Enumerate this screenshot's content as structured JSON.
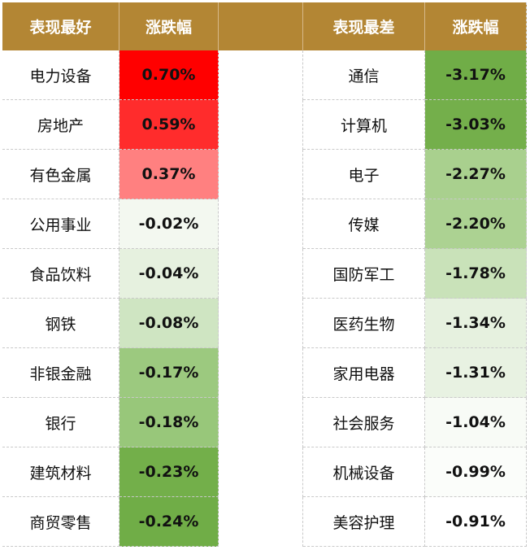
{
  "headers": {
    "best_name": "表现最好",
    "best_change": "涨跌幅",
    "worst_name": "表现最差",
    "worst_change": "涨跌幅"
  },
  "colors": {
    "header_bg": "#b38634",
    "red_strong": "#ff0000",
    "red_medium": "#ff2c2c",
    "red_light": "#ff8080",
    "green_strong": "#70ad47",
    "green_medium": "#a9d08e",
    "green_light": "#c6e0b4",
    "green_pale": "#e2efda",
    "green_faint": "#f3f8f0"
  },
  "rows": [
    {
      "best": "电力设备",
      "best_pct": "0.70%",
      "best_color": "#ff0000",
      "worst": "通信",
      "worst_pct": "-3.17%",
      "worst_color": "#70ad47"
    },
    {
      "best": "房地产",
      "best_pct": "0.59%",
      "best_color": "#ff2c2c",
      "worst": "计算机",
      "worst_pct": "-3.03%",
      "worst_color": "#74af4b"
    },
    {
      "best": "有色金属",
      "best_pct": "0.37%",
      "best_color": "#ff8080",
      "worst": "电子",
      "worst_pct": "-2.27%",
      "worst_color": "#a9d08e"
    },
    {
      "best": "公用事业",
      "best_pct": "-0.02%",
      "best_color": "#f3f8f0",
      "worst": "传媒",
      "worst_pct": "-2.20%",
      "worst_color": "#acd292"
    },
    {
      "best": "食品饮料",
      "best_pct": "-0.04%",
      "best_color": "#e6f1df",
      "worst": "国防军工",
      "worst_pct": "-1.78%",
      "worst_color": "#c9e2b9"
    },
    {
      "best": "钢铁",
      "best_pct": "-0.08%",
      "best_color": "#cfe5c2",
      "worst": "医药生物",
      "worst_pct": "-1.34%",
      "worst_color": "#e6f1df"
    },
    {
      "best": "非银金融",
      "best_pct": "-0.17%",
      "best_color": "#9cc97f",
      "worst": "家用电器",
      "worst_pct": "-1.31%",
      "worst_color": "#e8f2e2"
    },
    {
      "best": "银行",
      "best_pct": "-0.18%",
      "best_color": "#98c77a",
      "worst": "社会服务",
      "worst_pct": "-1.04%",
      "worst_color": "#f8fbf6"
    },
    {
      "best": "建筑材料",
      "best_pct": "-0.23%",
      "best_color": "#73af4a",
      "worst": "机械设备",
      "worst_pct": "-0.99%",
      "worst_color": "#fbfdfa"
    },
    {
      "best": "商贸零售",
      "best_pct": "-0.24%",
      "best_color": "#70ad47",
      "worst": "美容护理",
      "worst_pct": "-0.91%",
      "worst_color": "#ffffff"
    }
  ]
}
